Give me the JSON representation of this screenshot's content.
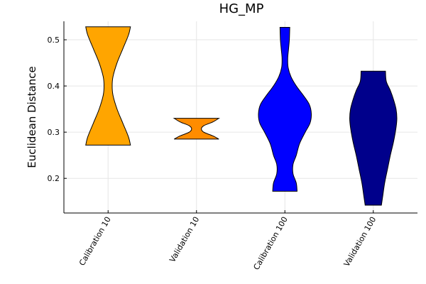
{
  "chart_data": {
    "type": "violin",
    "title": "HG_MP",
    "xlabel": "",
    "ylabel": "Euclidean Distance",
    "ylim": [
      0.125,
      0.54
    ],
    "yticks": [
      0.2,
      0.3,
      0.4,
      0.5
    ],
    "ytick_labels": [
      "0.2",
      "0.3",
      "0.4",
      "0.5"
    ],
    "grid": true,
    "categories": [
      "Calibration 10",
      "Validation 10",
      "Calibration 100",
      "Validation 100"
    ],
    "series": [
      {
        "color": "#FFA500",
        "min": 0.272,
        "max": 0.528,
        "profile": [
          [
            0.272,
            0.55
          ],
          [
            0.29,
            0.5
          ],
          [
            0.32,
            0.36
          ],
          [
            0.35,
            0.22
          ],
          [
            0.38,
            0.12
          ],
          [
            0.4,
            0.1
          ],
          [
            0.42,
            0.12
          ],
          [
            0.45,
            0.22
          ],
          [
            0.48,
            0.36
          ],
          [
            0.51,
            0.5
          ],
          [
            0.528,
            0.55
          ]
        ]
      },
      {
        "color": "#FF8C00",
        "min": 0.285,
        "max": 0.33,
        "profile": [
          [
            0.285,
            0.55
          ],
          [
            0.292,
            0.4
          ],
          [
            0.3,
            0.18
          ],
          [
            0.307,
            0.12
          ],
          [
            0.314,
            0.18
          ],
          [
            0.322,
            0.4
          ],
          [
            0.33,
            0.55
          ]
        ]
      },
      {
        "color": "#0000FF",
        "min": 0.172,
        "max": 0.527,
        "profile": [
          [
            0.172,
            0.3
          ],
          [
            0.19,
            0.28
          ],
          [
            0.21,
            0.2
          ],
          [
            0.23,
            0.2
          ],
          [
            0.25,
            0.28
          ],
          [
            0.275,
            0.36
          ],
          [
            0.3,
            0.5
          ],
          [
            0.32,
            0.62
          ],
          [
            0.34,
            0.65
          ],
          [
            0.36,
            0.6
          ],
          [
            0.38,
            0.45
          ],
          [
            0.4,
            0.28
          ],
          [
            0.42,
            0.15
          ],
          [
            0.44,
            0.08
          ],
          [
            0.46,
            0.07
          ],
          [
            0.48,
            0.09
          ],
          [
            0.5,
            0.11
          ],
          [
            0.527,
            0.12
          ]
        ]
      },
      {
        "color": "#00008B",
        "min": 0.142,
        "max": 0.432,
        "profile": [
          [
            0.142,
            0.2
          ],
          [
            0.16,
            0.23
          ],
          [
            0.19,
            0.28
          ],
          [
            0.22,
            0.35
          ],
          [
            0.25,
            0.42
          ],
          [
            0.28,
            0.5
          ],
          [
            0.31,
            0.56
          ],
          [
            0.33,
            0.58
          ],
          [
            0.35,
            0.56
          ],
          [
            0.37,
            0.5
          ],
          [
            0.39,
            0.42
          ],
          [
            0.41,
            0.32
          ],
          [
            0.432,
            0.3
          ]
        ]
      }
    ]
  }
}
